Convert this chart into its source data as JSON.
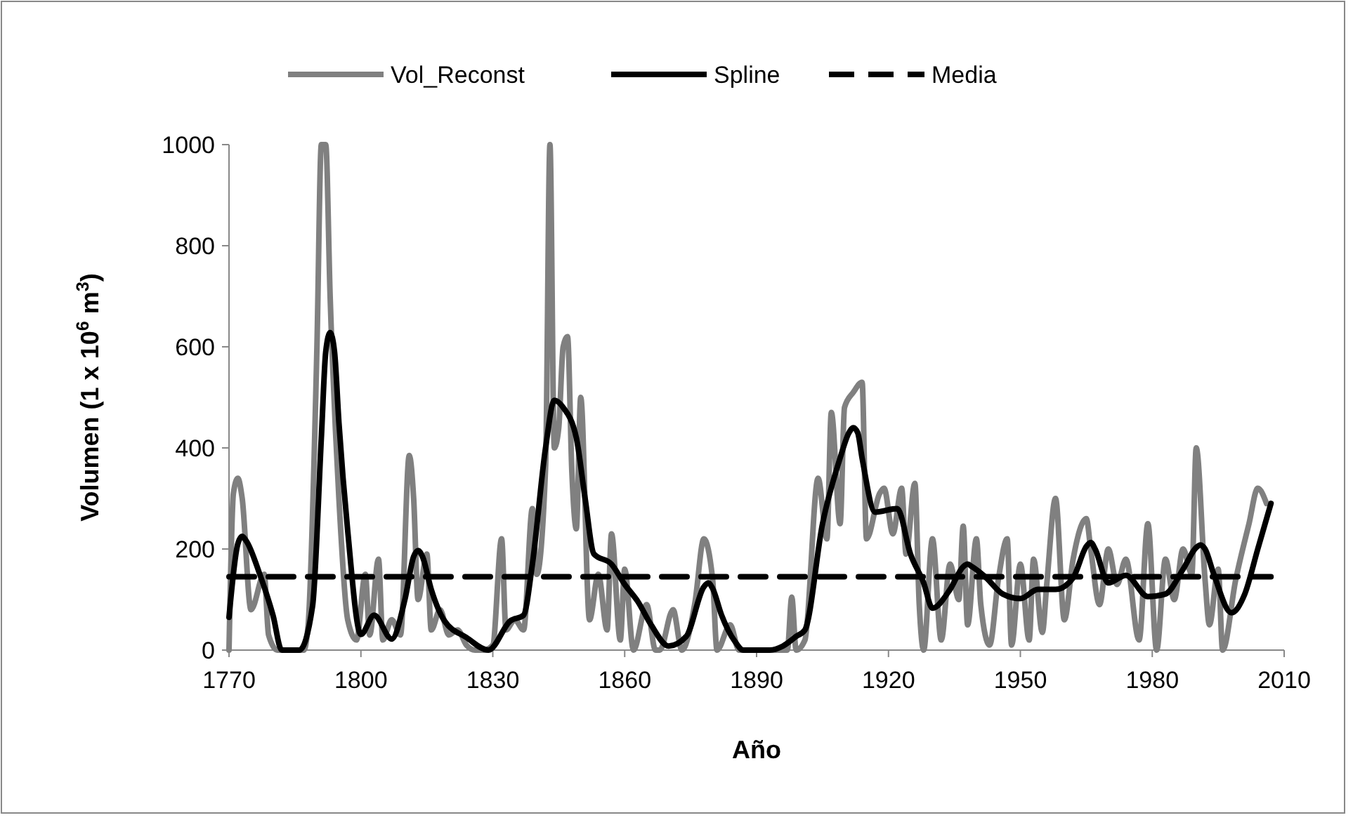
{
  "chart_data": {
    "type": "line",
    "xlabel": "Año",
    "ylabel": "Volumen (1 x 10$^{6}$ m$^{3}$)",
    "xlim": [
      1770,
      2010
    ],
    "ylim": [
      0,
      1000
    ],
    "xticks": [
      1770,
      1800,
      1830,
      1860,
      1890,
      1920,
      1950,
      1980,
      2010
    ],
    "yticks": [
      0,
      200,
      400,
      600,
      800,
      1000
    ],
    "grid": false,
    "legend": "top",
    "series": [
      {
        "name": "Vol_Reconst",
        "color": "#808080",
        "line_style": "solid",
        "x": [
          1770,
          1771,
          1772,
          1773,
          1775,
          1778,
          1779,
          1781,
          1787,
          1788,
          1790,
          1791,
          1792,
          1793,
          1795,
          1797,
          1799,
          1801,
          1802,
          1804,
          1805,
          1807,
          1809,
          1811,
          1812,
          1813,
          1815,
          1816,
          1818,
          1820,
          1822,
          1824,
          1826,
          1828,
          1830,
          1832,
          1833,
          1835,
          1837,
          1839,
          1840,
          1842,
          1843,
          1844,
          1845,
          1846,
          1847,
          1848,
          1849,
          1850,
          1852,
          1854,
          1856,
          1857,
          1859,
          1860,
          1862,
          1865,
          1867,
          1868,
          1871,
          1873,
          1876,
          1878,
          1880,
          1881,
          1884,
          1886,
          1897,
          1898,
          1899,
          1901,
          1904,
          1906,
          1907,
          1909,
          1910,
          1912,
          1914,
          1915,
          1918,
          1919,
          1921,
          1923,
          1924,
          1926,
          1927,
          1928,
          1930,
          1932,
          1934,
          1936,
          1937,
          1938,
          1940,
          1941,
          1943,
          1945,
          1947,
          1948,
          1950,
          1952,
          1953,
          1955,
          1956,
          1958,
          1960,
          1962,
          1965,
          1966,
          1968,
          1970,
          1972,
          1974,
          1977,
          1979,
          1981,
          1983,
          1985,
          1987,
          1989,
          1990,
          1992,
          1993,
          1995,
          1996,
          1999,
          2002,
          2004,
          2006
        ],
        "values": [
          0,
          310,
          340,
          300,
          80,
          150,
          30,
          0,
          0,
          50,
          600,
          1000,
          1000,
          700,
          300,
          60,
          20,
          150,
          30,
          180,
          20,
          60,
          30,
          385,
          300,
          100,
          190,
          40,
          80,
          30,
          40,
          10,
          0,
          0,
          10,
          220,
          40,
          60,
          40,
          280,
          150,
          360,
          1000,
          400,
          440,
          600,
          620,
          350,
          240,
          500,
          60,
          150,
          40,
          230,
          20,
          160,
          0,
          90,
          0,
          0,
          80,
          0,
          95,
          220,
          140,
          0,
          50,
          0,
          0,
          105,
          0,
          20,
          340,
          220,
          470,
          250,
          480,
          510,
          530,
          220,
          310,
          320,
          230,
          320,
          190,
          330,
          90,
          0,
          220,
          20,
          170,
          100,
          245,
          50,
          220,
          90,
          10,
          140,
          220,
          10,
          170,
          20,
          180,
          35,
          130,
          300,
          60,
          180,
          260,
          200,
          90,
          200,
          130,
          180,
          20,
          250,
          0,
          180,
          100,
          200,
          150,
          400,
          140,
          50,
          160,
          0,
          140,
          250,
          320,
          290
        ]
      },
      {
        "name": "Spline",
        "color": "#000000",
        "line_style": "solid",
        "x": [
          1770,
          1772,
          1773,
          1774,
          1777,
          1780,
          1782,
          1786,
          1789,
          1791,
          1792,
          1793,
          1794,
          1795,
          1797,
          1800,
          1803,
          1807,
          1810,
          1812,
          1813,
          1814,
          1816,
          1819,
          1824,
          1829,
          1834,
          1837,
          1839,
          1842,
          1844,
          1846,
          1849,
          1851,
          1853,
          1857,
          1860,
          1863,
          1866,
          1870,
          1874,
          1878,
          1879,
          1880,
          1882,
          1885,
          1887,
          1893,
          1896,
          1899,
          1901,
          1905,
          1909,
          1911,
          1912,
          1913,
          1914,
          1917,
          1922,
          1925,
          1928,
          1930,
          1934,
          1937,
          1938,
          1939,
          1942,
          1946,
          1950,
          1954,
          1958,
          1962,
          1965,
          1966,
          1967,
          1970,
          1974,
          1979,
          1983,
          1987,
          1990,
          1991,
          1992,
          1994,
          1998,
          2001,
          2004,
          2007
        ],
        "values": [
          65,
          210,
          225,
          215,
          150,
          69,
          0,
          0,
          87,
          420,
          590,
          628,
          590,
          450,
          236,
          31,
          69,
          22,
          100,
          185,
          197,
          185,
          120,
          58,
          25,
          0,
          58,
          69,
          170,
          400,
          494,
          480,
          420,
          300,
          190,
          170,
          130,
          96,
          50,
          8,
          27,
          125,
          133,
          122,
          70,
          18,
          0,
          0,
          8,
          27,
          40,
          250,
          380,
          430,
          440,
          430,
          380,
          273,
          280,
          190,
          133,
          83,
          120,
          165,
          170,
          165,
          145,
          111,
          102,
          120,
          120,
          143,
          205,
          213,
          200,
          133,
          148,
          106,
          111,
          160,
          203,
          208,
          200,
          150,
          74,
          110,
          200,
          290
        ]
      },
      {
        "name": "Media",
        "color": "#000000",
        "line_style": "dashed",
        "x": [
          1770,
          2007
        ],
        "values": [
          145,
          145
        ]
      }
    ]
  }
}
